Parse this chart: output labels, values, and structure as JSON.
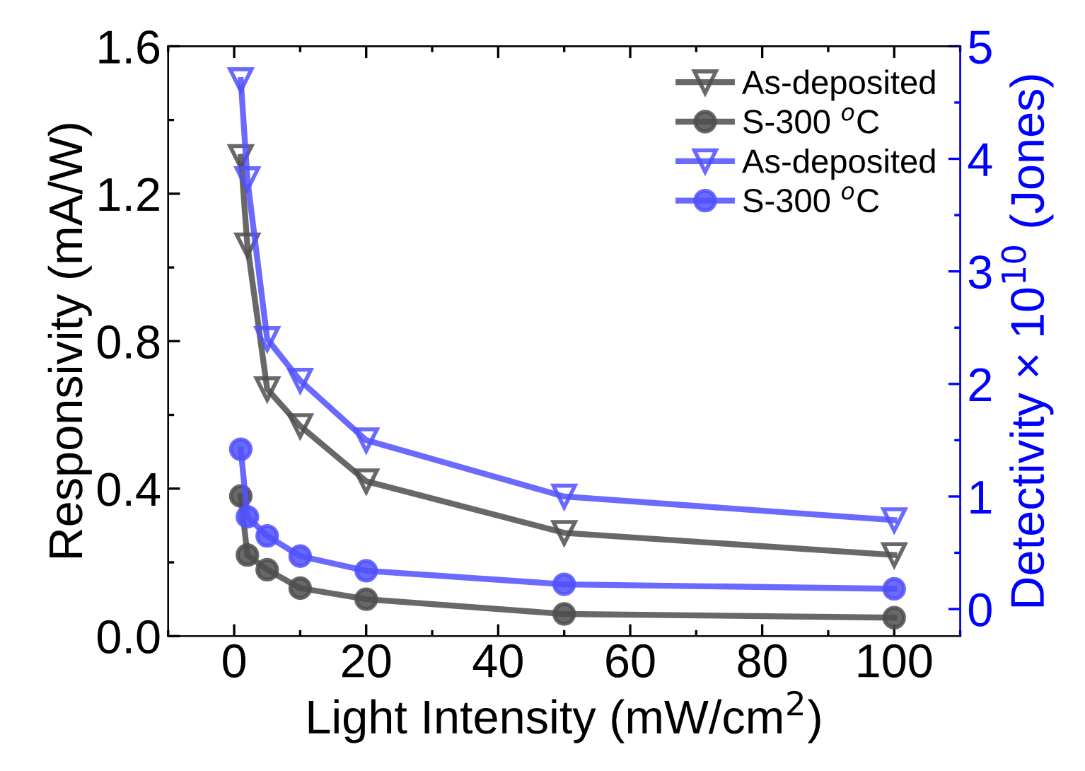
{
  "chart_data": {
    "type": "line",
    "xlabel": "Light Intensity (mW/cm$^{2}$)",
    "ylabel": "Responsivity (mA/W)",
    "y2label": "Detectivity × 10$^{10}$ (Jones)",
    "x": [
      1,
      2,
      5,
      10,
      20,
      50,
      100
    ],
    "xlim": [
      -10,
      110
    ],
    "xticks": [
      0,
      20,
      40,
      60,
      80,
      100
    ],
    "ylim": [
      0,
      1.6
    ],
    "yticks": [
      {
        "value": 0,
        "label": "0.0"
      },
      0.4,
      0.8,
      1.2,
      1.6
    ],
    "y2lim": [
      -0.24,
      5
    ],
    "y2ticks": [
      0,
      1,
      2,
      3,
      4,
      5
    ],
    "legend": "top right",
    "line_style": "solid",
    "series": [
      {
        "name": "As-deposited",
        "color": "#4d4d4d",
        "marker": "triangle",
        "values": [
          1.3,
          1.06,
          0.67,
          0.57,
          0.42,
          0.28,
          0.22
        ]
      },
      {
        "name": "S-300 $^{o}$C",
        "color": "#4d4d4d",
        "marker": "circle",
        "values": [
          0.38,
          0.22,
          0.18,
          0.13,
          0.1,
          0.06,
          0.05
        ]
      },
      {
        "name": "As-deposited",
        "color": "#5050ff",
        "marker": "triangle",
        "axis": "y2",
        "values": [
          4.7,
          3.82,
          2.4,
          2.03,
          1.5,
          1.0,
          0.79
        ]
      },
      {
        "name": "S-300 $^{o}$C",
        "color": "#5050ff",
        "marker": "circle",
        "axis": "y2",
        "values": [
          1.42,
          0.82,
          0.65,
          0.47,
          0.34,
          0.22,
          0.18
        ]
      }
    ]
  }
}
